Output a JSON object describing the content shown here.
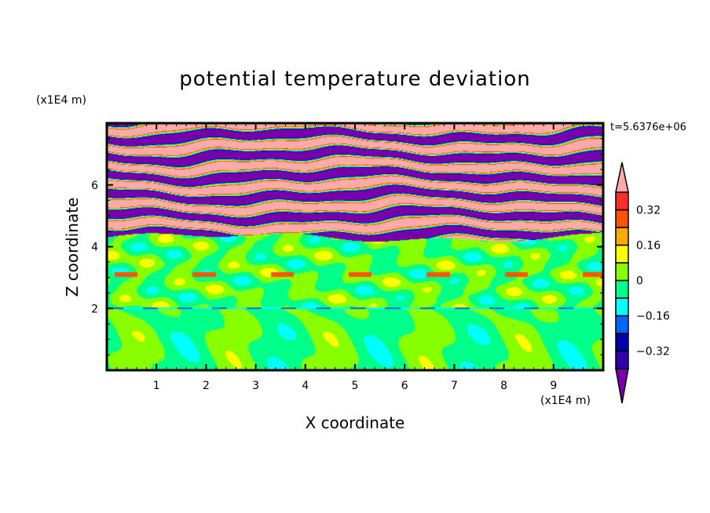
{
  "chart_data": {
    "type": "heatmap",
    "title": "potential temperature deviation",
    "xlabel": "X coordinate",
    "ylabel": "Z coordinate",
    "x_unit": "(x1E4 m)",
    "y_unit": "(x1E4 m)",
    "annotation": "t=5.6376e+06",
    "xlim": [
      0,
      10
    ],
    "ylim": [
      0,
      8
    ],
    "x_ticks": [
      "1",
      "2",
      "3",
      "4",
      "5",
      "6",
      "7",
      "8",
      "9"
    ],
    "y_ticks": [
      "2",
      "4",
      "6"
    ],
    "colorbar": {
      "levels": [
        -0.4,
        -0.32,
        -0.24,
        -0.16,
        -0.08,
        0,
        0.08,
        0.16,
        0.24,
        0.32,
        0.4
      ],
      "tick_labels": [
        "0.32",
        "0.16",
        "0",
        "−0.16",
        "−0.32"
      ],
      "tick_values": [
        0.32,
        0.16,
        0,
        -0.16,
        -0.32
      ],
      "colors": [
        "#7700aa",
        "#3300aa",
        "#0000aa",
        "#0066ff",
        "#00ffff",
        "#00ff88",
        "#88ff00",
        "#ffff00",
        "#ffaa00",
        "#ff5500",
        "#ff2a2a",
        "#ffaaaa"
      ],
      "extend": "both"
    },
    "description_of_field": {
      "upper_layer_z": [
        4.3,
        8
      ],
      "middle_layer_z": [
        2,
        4.3
      ],
      "lower_layer_z": [
        0,
        2
      ]
    }
  }
}
